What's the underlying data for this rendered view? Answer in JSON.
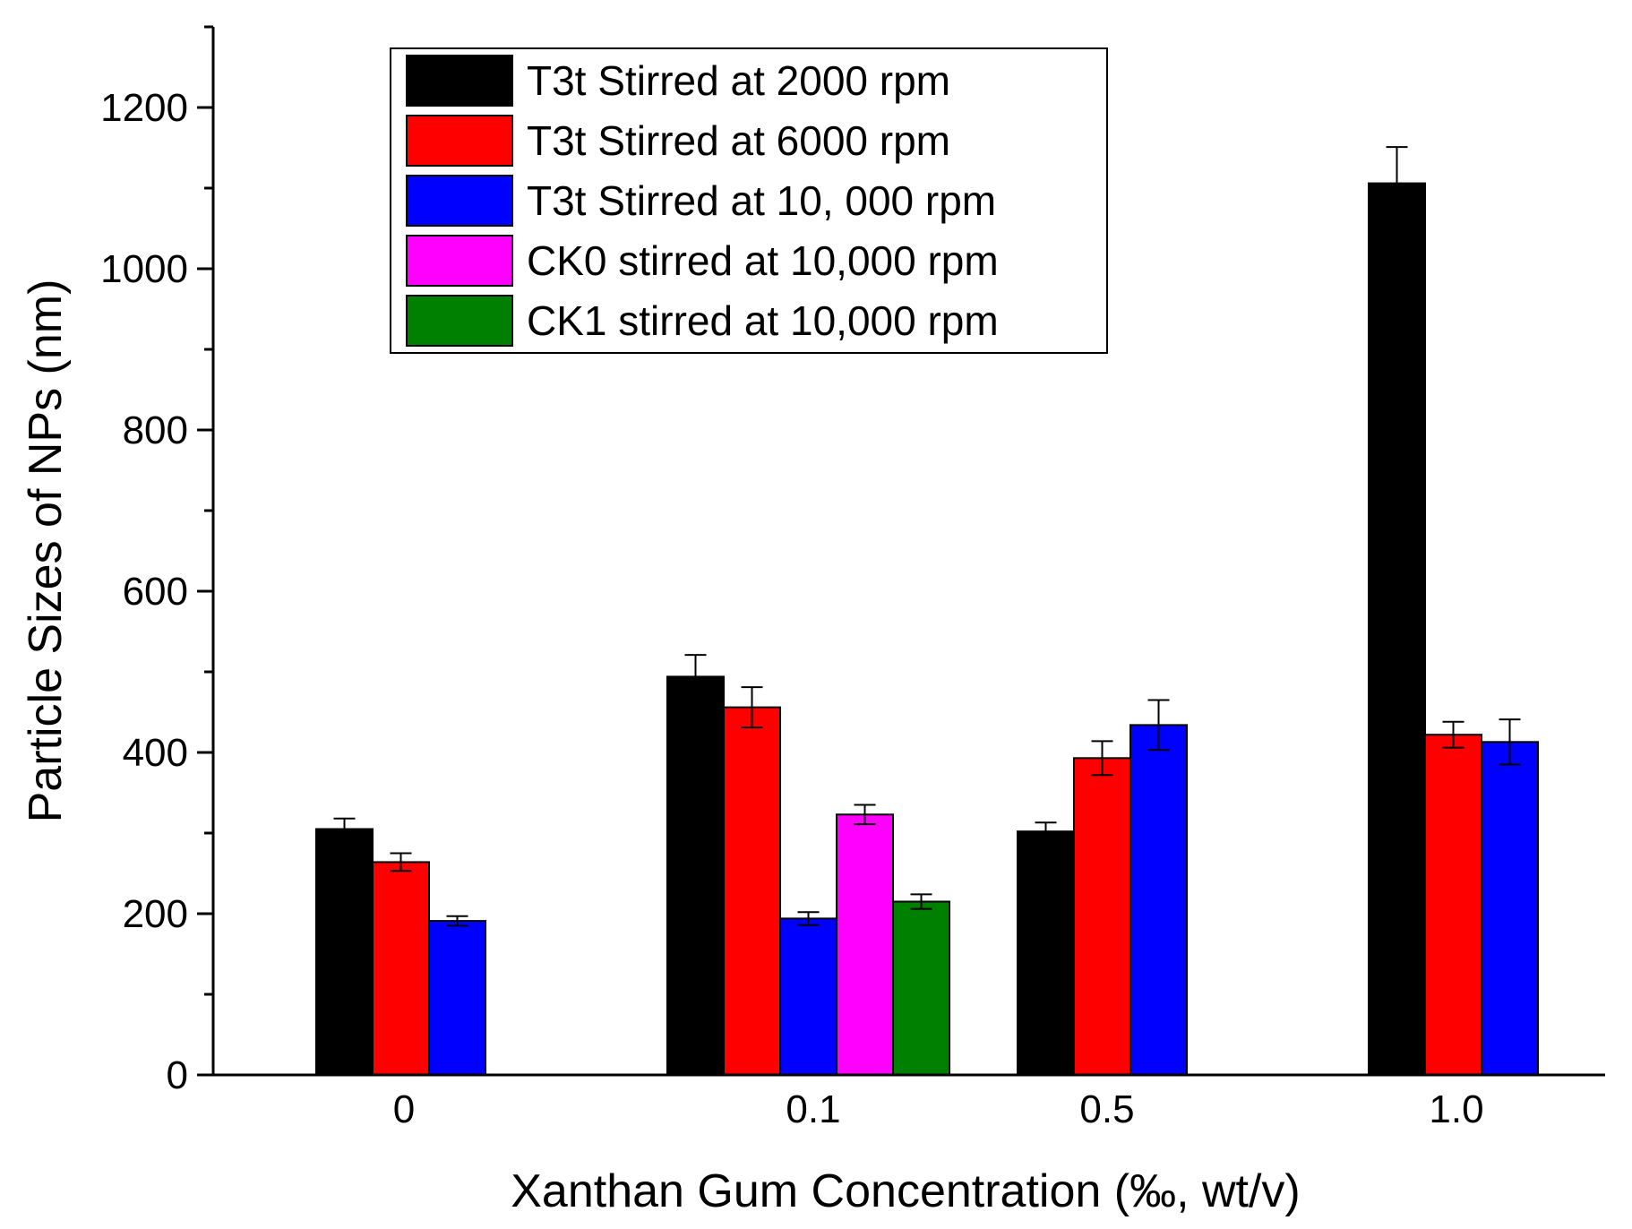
{
  "chart_data": {
    "type": "bar",
    "title": "",
    "xlabel": "Xanthan Gum Concentration (‰, wt/v)",
    "ylabel": "Particle Sizes of NPs (nm)",
    "ylim": [
      0,
      1300
    ],
    "yticks": [
      0,
      200,
      400,
      600,
      800,
      1000,
      1200
    ],
    "y_minor_step": 100,
    "grid": false,
    "legend_position": "top-center",
    "categories": [
      "0",
      "0.1",
      "0.5",
      "1.0"
    ],
    "series": [
      {
        "name": "T3t Stirred at 2000 rpm",
        "color": "#000000",
        "values": [
          305,
          494,
          302,
          1106
        ],
        "errors": [
          13,
          27,
          11,
          45
        ]
      },
      {
        "name": "T3t Stirred at 6000 rpm",
        "color": "#ff0000",
        "values": [
          264,
          456,
          393,
          422
        ],
        "errors": [
          11,
          25,
          21,
          16
        ]
      },
      {
        "name": "T3t Stirred at 10, 000 rpm",
        "color": "#0000ff",
        "values": [
          191,
          194,
          434,
          413
        ],
        "errors": [
          6,
          8,
          31,
          28
        ]
      },
      {
        "name": "CK0 stirred at 10,000 rpm",
        "color": "#ff00ff",
        "values": [
          null,
          323,
          null,
          null
        ],
        "errors": [
          null,
          12,
          null,
          null
        ]
      },
      {
        "name": "CK1 stirred at 10,000 rpm",
        "color": "#008000",
        "values": [
          null,
          215,
          null,
          null
        ],
        "errors": [
          null,
          9,
          null,
          null
        ]
      }
    ]
  }
}
